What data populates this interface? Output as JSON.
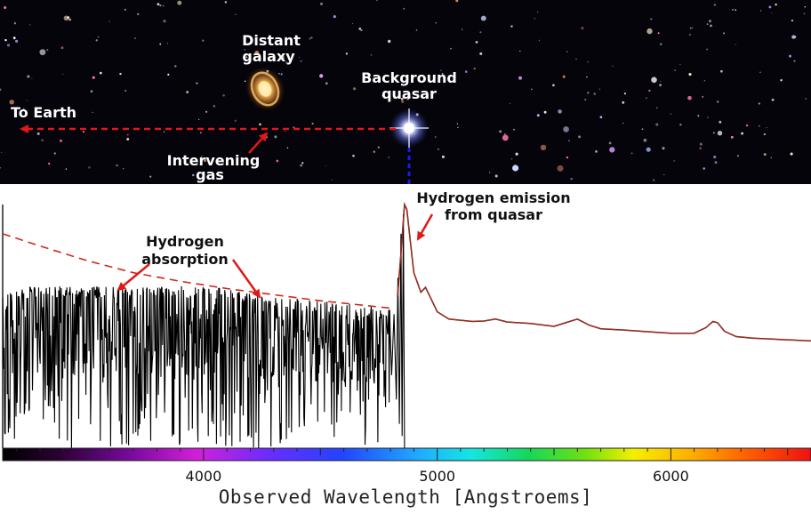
{
  "image": {
    "labels": {
      "distant_galaxy": [
        "Distant",
        "galaxy"
      ],
      "background_quasar": [
        "Background",
        "quasar"
      ],
      "to_earth": "To Earth",
      "intervening_gas": [
        "Intervening",
        "gas"
      ]
    },
    "colors": {
      "sky": "#04040a",
      "arrow": "#e01818",
      "quasar_dash": "#1a1aee"
    }
  },
  "chart_data": {
    "type": "line",
    "title": "",
    "xlabel": "Observed Wavelength [Angstroems]",
    "ylabel": "",
    "xlim": [
      3140,
      6600
    ],
    "ticks_major": [
      4000,
      5000,
      6000
    ],
    "grid": false,
    "colors": {
      "spectrum": "#000000",
      "continuum": "#cc2a1a"
    },
    "annotations": [
      {
        "lines": [
          "Hydrogen",
          "absorption"
        ]
      },
      {
        "lines": [
          "Hydrogen emission",
          "from quasar"
        ]
      }
    ],
    "series": [
      {
        "role": "continuum",
        "style": "dashed",
        "x": [
          3140,
          3300,
          3500,
          3700,
          3900,
          4100,
          4300,
          4500,
          4700,
          4800
        ],
        "y": [
          0.88,
          0.83,
          0.77,
          0.72,
          0.685,
          0.655,
          0.63,
          0.605,
          0.585,
          0.575
        ]
      },
      {
        "role": "continuum",
        "style": "solid",
        "x": [
          4830,
          4845,
          4860,
          4870,
          4885,
          4900,
          4930,
          4950,
          4970,
          5000,
          5050,
          5100,
          5150,
          5200,
          5250,
          5300,
          5400,
          5500,
          5550,
          5600,
          5650,
          5700,
          5800,
          5900,
          6000,
          6100,
          6150,
          6180,
          6200,
          6230,
          6280,
          6350,
          6450,
          6600
        ],
        "y": [
          0.62,
          0.8,
          1.0,
          0.98,
          0.85,
          0.72,
          0.64,
          0.66,
          0.62,
          0.56,
          0.53,
          0.525,
          0.52,
          0.522,
          0.53,
          0.518,
          0.512,
          0.5,
          0.515,
          0.53,
          0.505,
          0.49,
          0.485,
          0.478,
          0.472,
          0.472,
          0.495,
          0.52,
          0.515,
          0.48,
          0.458,
          0.452,
          0.447,
          0.44
        ]
      },
      {
        "role": "spectrum",
        "style": "solid",
        "description_free": true,
        "x_range": [
          3140,
          4860
        ]
      }
    ]
  }
}
